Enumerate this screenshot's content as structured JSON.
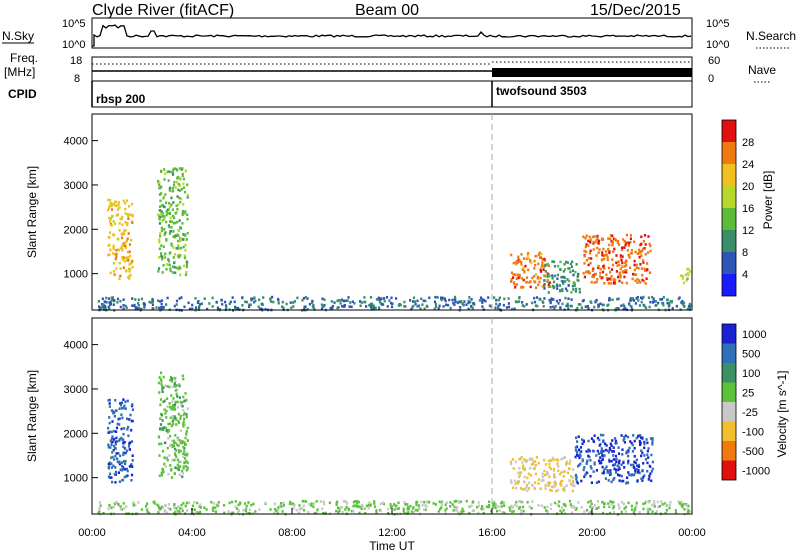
{
  "header": {
    "title": "Clyde River (fitACF)",
    "beam": "Beam 00",
    "date": "15/Dec/2015"
  },
  "nsky_panel": {
    "left_label": "N.Sky",
    "left_ticks": [
      "10^5",
      "10^0"
    ],
    "right_ticks": [
      "10^5",
      "10^0"
    ],
    "right_label": "N.Search"
  },
  "freq_panel": {
    "left_label_line1": "Freq.",
    "left_label_line2": "[MHz]",
    "left_ticks": [
      "18",
      "8"
    ],
    "right_ticks": [
      "60",
      "0"
    ],
    "right_label": "Nave"
  },
  "cpid_panel": {
    "label": "CPID",
    "modes": [
      {
        "name": "rbsp 200",
        "start_hour": 0
      },
      {
        "name": "twofsound 3503",
        "start_hour": 16
      }
    ]
  },
  "x_axis": {
    "title": "Time UT",
    "ticks": [
      "00:00",
      "04:00",
      "08:00",
      "12:00",
      "16:00",
      "20:00",
      "00:00"
    ]
  },
  "chart_data": [
    {
      "type": "heatmap",
      "title": "",
      "xlabel": "Time UT",
      "ylabel": "Slant Range [km]",
      "xlim": [
        0,
        24
      ],
      "ylim": [
        180,
        4600
      ],
      "y_ticks": [
        "1000",
        "2000",
        "3000",
        "4000"
      ],
      "colorbar": {
        "label": "Power [dB]",
        "range": [
          0,
          32
        ],
        "tick_labels": [
          "4",
          "8",
          "12",
          "16",
          "20",
          "24",
          "28"
        ],
        "colors": [
          "#1a1aff",
          "#2e55b8",
          "#3a8f6a",
          "#5dbb3c",
          "#b8d72a",
          "#f0c020",
          "#f07a10",
          "#e01010"
        ]
      },
      "regions": [
        {
          "t": [
            0.6,
            1.6
          ],
          "r": [
            900,
            2700
          ],
          "value": 22
        },
        {
          "t": [
            2.6,
            3.8
          ],
          "r": [
            1000,
            3400
          ],
          "value": 14
        },
        {
          "t": [
            16.7,
            18.3
          ],
          "r": [
            700,
            1500
          ],
          "value": 26
        },
        {
          "t": [
            18.0,
            19.5
          ],
          "r": [
            600,
            1300
          ],
          "value": 10
        },
        {
          "t": [
            19.6,
            22.3
          ],
          "r": [
            800,
            1900
          ],
          "value": 27
        },
        {
          "t": [
            23.5,
            23.9
          ],
          "r": [
            800,
            1200
          ],
          "value": 18
        },
        {
          "t": [
            0.2,
            23.9
          ],
          "r": [
            200,
            500
          ],
          "value": 8
        }
      ]
    },
    {
      "type": "heatmap",
      "title": "",
      "xlabel": "Time UT",
      "ylabel": "Slant Range [km]",
      "xlim": [
        0,
        24
      ],
      "ylim": [
        180,
        4600
      ],
      "y_ticks": [
        "1000",
        "2000",
        "3000",
        "4000"
      ],
      "colorbar": {
        "label": "Velocity [m s^-1]",
        "range": [
          -1200,
          1200
        ],
        "tick_labels": [
          "1000",
          "500",
          "100",
          "25",
          "-25",
          "-100",
          "-500",
          "-1000"
        ],
        "colors": [
          "#1a22d4",
          "#2e6fb8",
          "#3d8f66",
          "#5cc23c",
          "#c8c8c8",
          "#f0c030",
          "#f07a10",
          "#e01010"
        ]
      },
      "regions": [
        {
          "t": [
            0.6,
            1.6
          ],
          "r": [
            900,
            2800
          ],
          "value": 800
        },
        {
          "t": [
            2.6,
            3.8
          ],
          "r": [
            1000,
            3400
          ],
          "value": 150
        },
        {
          "t": [
            16.7,
            19.3
          ],
          "r": [
            700,
            1500
          ],
          "value": -300
        },
        {
          "t": [
            19.3,
            22.4
          ],
          "r": [
            900,
            2000
          ],
          "value": 900
        },
        {
          "t": [
            0.2,
            23.9
          ],
          "r": [
            200,
            500
          ],
          "value": 40
        }
      ]
    }
  ]
}
